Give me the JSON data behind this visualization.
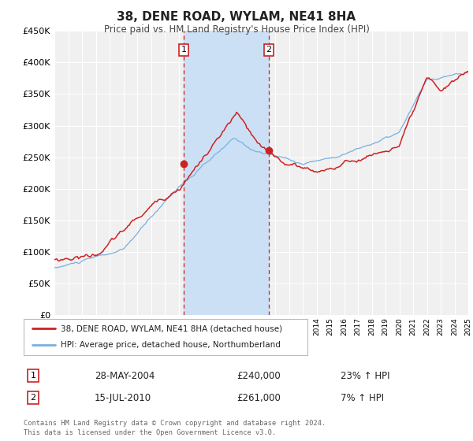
{
  "title": "38, DENE ROAD, WYLAM, NE41 8HA",
  "subtitle": "Price paid vs. HM Land Registry's House Price Index (HPI)",
  "legend_line1": "38, DENE ROAD, WYLAM, NE41 8HA (detached house)",
  "legend_line2": "HPI: Average price, detached house, Northumberland",
  "transaction1_date": "28-MAY-2004",
  "transaction1_price": "£240,000",
  "transaction1_hpi": "23% ↑ HPI",
  "transaction2_date": "15-JUL-2010",
  "transaction2_price": "£261,000",
  "transaction2_hpi": "7% ↑ HPI",
  "footer1": "Contains HM Land Registry data © Crown copyright and database right 2024.",
  "footer2": "This data is licensed under the Open Government Licence v3.0.",
  "hpi_color": "#7ab0e0",
  "price_color": "#cc2222",
  "dot_color": "#cc2222",
  "background_color": "#ffffff",
  "plot_bg_color": "#f0f0f0",
  "shade_color": "#cce0f5",
  "grid_color": "#ffffff",
  "ylim": [
    0,
    450000
  ],
  "yticks": [
    0,
    50000,
    100000,
    150000,
    200000,
    250000,
    300000,
    350000,
    400000,
    450000
  ],
  "year_start": 1995,
  "year_end": 2025,
  "transaction1_year": 2004.38,
  "transaction2_year": 2010.54,
  "transaction1_price_val": 240000,
  "transaction2_price_val": 261000
}
